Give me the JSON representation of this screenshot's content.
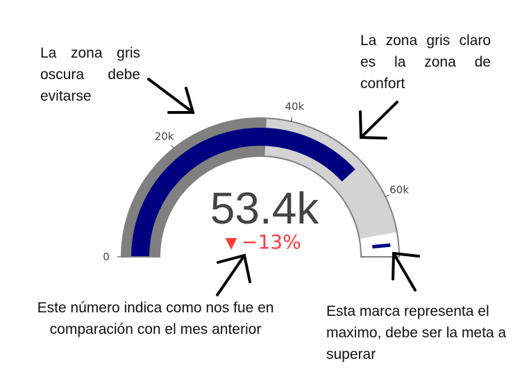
{
  "chart_data": {
    "type": "gauge",
    "value": 53400,
    "value_label": "53.4k",
    "delta_label": "−13%",
    "delta_symbol": "▼",
    "delta_direction": "decreasing",
    "axis_range": [
      0,
      70000
    ],
    "ticks": [
      {
        "value": 0,
        "label": "0"
      },
      {
        "value": 20000,
        "label": "20k"
      },
      {
        "value": 40000,
        "label": "40k"
      },
      {
        "value": 60000,
        "label": "60k"
      }
    ],
    "steps": [
      {
        "range": [
          0,
          36000
        ],
        "color": "#808080"
      },
      {
        "range": [
          36000,
          66000
        ],
        "color": "#d3d3d3"
      }
    ],
    "threshold": 68000,
    "colors": {
      "bar": "#000080",
      "threshold": "#000080",
      "delta": "#ff3b3b",
      "number": "#444444",
      "outline": "#808080"
    }
  },
  "annotations": {
    "dark_zone": "La zona gris oscura debe evitarse",
    "light_zone": "La zona gris claro es la zona de confort",
    "delta": "Este número indica como nos fue en comparación con el mes anterior",
    "threshold": "Esta marca representa el maximo, debe ser la meta a superar"
  }
}
